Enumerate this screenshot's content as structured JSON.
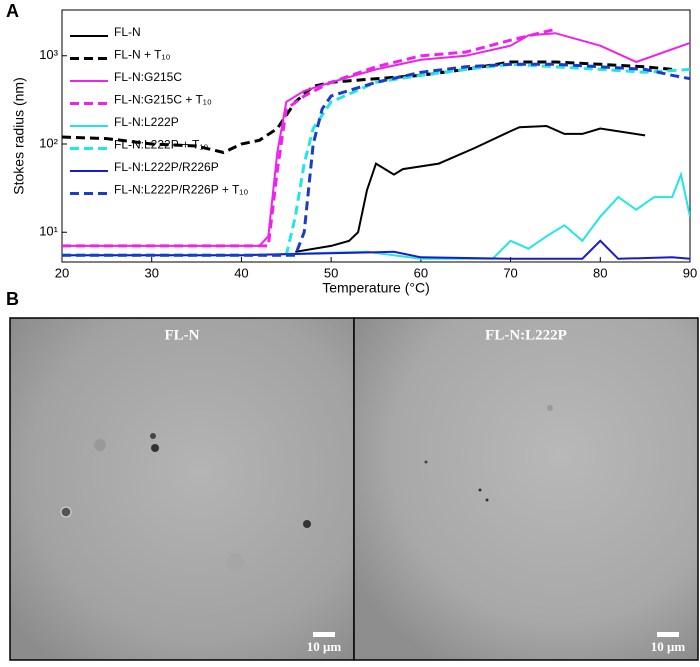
{
  "panel_labels": [
    "A",
    "B"
  ],
  "chart_data": {
    "type": "line",
    "xlabel": "Temperature (°C)",
    "ylabel": "Stokes radius (nm)",
    "xlim": [
      20,
      90
    ],
    "xticks": [
      20,
      30,
      40,
      50,
      60,
      70,
      80,
      90
    ],
    "ylim": [
      4.6,
      3300
    ],
    "log_y": true,
    "yticks": [
      {
        "value": 10,
        "label": "10¹"
      },
      {
        "value": 100,
        "label": "10²"
      },
      {
        "value": 1000,
        "label": "10³"
      }
    ],
    "legend": "upper-left",
    "series": [
      {
        "name": "FL-N",
        "color": "#000000",
        "dashed": false,
        "x": [
          46,
          50,
          52,
          53,
          54,
          55,
          57,
          58,
          62,
          66,
          70,
          71,
          74,
          76,
          78,
          80,
          85
        ],
        "values": [
          6,
          7,
          8,
          10,
          30,
          60,
          45,
          52,
          60,
          90,
          140,
          155,
          160,
          130,
          130,
          150,
          125
        ]
      },
      {
        "name": "FL-N + T₁₀",
        "color": "#000000",
        "dashed": true,
        "x": [
          20,
          25,
          30,
          35,
          38,
          40,
          42,
          44,
          46,
          48,
          50,
          55,
          60,
          65,
          70,
          75,
          80,
          85,
          88
        ],
        "values": [
          120,
          115,
          100,
          95,
          80,
          100,
          110,
          150,
          300,
          450,
          500,
          550,
          600,
          700,
          850,
          850,
          800,
          750,
          700
        ]
      },
      {
        "name": "FL-N:G215C",
        "color": "#ee22ee",
        "dashed": false,
        "x": [
          20,
          42,
          43,
          44,
          45,
          47,
          50,
          55,
          60,
          65,
          70,
          72,
          75,
          80,
          84,
          90
        ],
        "values": [
          7,
          7,
          9,
          80,
          300,
          400,
          500,
          700,
          900,
          1000,
          1300,
          1700,
          1800,
          1300,
          850,
          1400
        ]
      },
      {
        "name": "FL-N:G215C + T₁₀",
        "color": "#ee22ee",
        "dashed": true,
        "x": [
          20,
          43,
          44,
          45,
          47,
          50,
          55,
          60,
          65,
          70,
          75
        ],
        "values": [
          7,
          7,
          50,
          250,
          350,
          500,
          750,
          1000,
          1100,
          1500,
          2000
        ]
      },
      {
        "name": "FL-N:L222P",
        "color": "#22e5e5",
        "dashed": false,
        "x": [
          20,
          40,
          54,
          60,
          66,
          68,
          70,
          72,
          74,
          76,
          78,
          80,
          82,
          84,
          86,
          88,
          89,
          90
        ],
        "values": [
          5.5,
          5.5,
          6,
          5,
          5,
          5,
          8,
          6.5,
          9,
          12,
          8,
          15,
          25,
          18,
          25,
          25,
          45,
          15
        ]
      },
      {
        "name": "FL-N:L222P + T₁₀",
        "color": "#22e5e5",
        "dashed": true,
        "x": [
          20,
          45,
          46,
          47,
          48,
          50,
          55,
          60,
          65,
          70,
          75,
          80,
          85,
          90
        ],
        "values": [
          5.5,
          5.5,
          15,
          60,
          150,
          300,
          500,
          600,
          700,
          800,
          750,
          700,
          650,
          700
        ]
      },
      {
        "name": "FL-N:L222P/R226P",
        "color": "#1a1acc",
        "dashed": false,
        "x": [
          20,
          40,
          57,
          60,
          70,
          78,
          80,
          82,
          88,
          90
        ],
        "values": [
          5.5,
          5.5,
          6,
          5.2,
          5,
          5,
          8,
          5,
          5.2,
          5
        ]
      },
      {
        "name": "FL-N:L222P/R226P + T₁₀",
        "color": "#1a3ccc",
        "dashed": true,
        "x": [
          20,
          46,
          47,
          48,
          49,
          50,
          55,
          60,
          65,
          70,
          75,
          80,
          85,
          88,
          90
        ],
        "values": [
          5.5,
          5.5,
          10,
          100,
          250,
          350,
          500,
          650,
          750,
          800,
          800,
          750,
          700,
          600,
          550
        ]
      }
    ]
  },
  "images": [
    {
      "label": "FL-N",
      "scale_bar": "10 μm"
    },
    {
      "label": "FL-N:L222P",
      "scale_bar": "10 μm"
    }
  ]
}
